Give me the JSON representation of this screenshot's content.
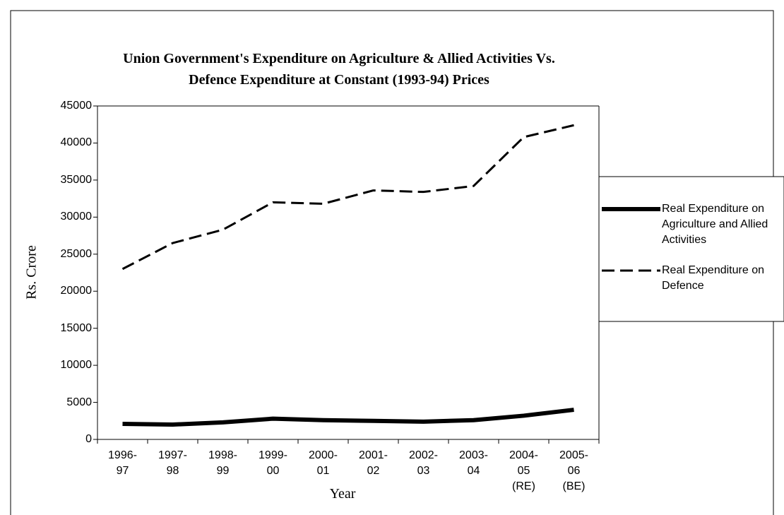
{
  "chart_data": {
    "type": "line",
    "title": "Union Government's Expenditure on Agriculture & Allied Activities Vs.\nDefence Expenditure at Constant (1993-94) Prices",
    "x_label": "Year",
    "y_label": "Rs. Crore",
    "categories": [
      "1996-\n97",
      "1997-\n98",
      "1998-\n99",
      "1999-\n00",
      "2000-\n01",
      "2001-\n02",
      "2002-\n03",
      "2003-\n04",
      "2004-\n05\n(RE)",
      "2005-\n06\n(BE)"
    ],
    "series": [
      {
        "name": "Real Expenditure on Agriculture and Allied Activities",
        "color": "#000000",
        "style": "solid",
        "values": [
          2100,
          2000,
          2300,
          2800,
          2600,
          2500,
          2400,
          2600,
          3200,
          4000
        ]
      },
      {
        "name": "Real Expenditure on Defence",
        "color": "#000000",
        "style": "dashed",
        "values": [
          23000,
          26500,
          28300,
          32000,
          31800,
          33600,
          33400,
          34200,
          40800,
          42400
        ]
      }
    ],
    "ylim": [
      0,
      45000
    ],
    "yticks": [
      0,
      5000,
      10000,
      15000,
      20000,
      25000,
      30000,
      35000,
      40000,
      45000
    ],
    "grid": false,
    "legend": "right"
  }
}
